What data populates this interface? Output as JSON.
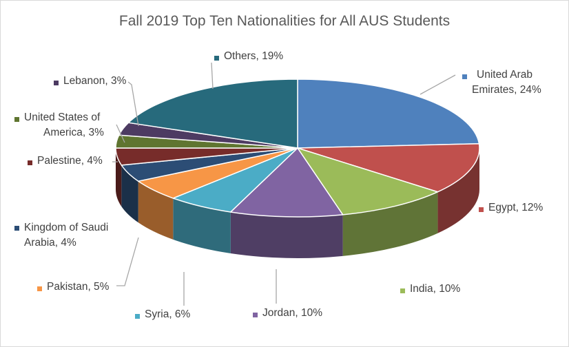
{
  "chart_data": {
    "type": "pie",
    "title": "Fall 2019 Top Ten Nationalities for All AUS Students",
    "style": "3d",
    "slices": [
      {
        "name": "United Arab Emirates",
        "label_lines": [
          "United Arab",
          "Emirates, 24%"
        ],
        "value": 24,
        "color": "#4f81bd"
      },
      {
        "name": "Egypt",
        "label_lines": [
          "Egypt, 12%"
        ],
        "value": 12,
        "color": "#c0504d"
      },
      {
        "name": "India",
        "label_lines": [
          "India, 10%"
        ],
        "value": 10,
        "color": "#9bbb59"
      },
      {
        "name": "Jordan",
        "label_lines": [
          "Jordan, 10%"
        ],
        "value": 10,
        "color": "#8064a2"
      },
      {
        "name": "Syria",
        "label_lines": [
          "Syria, 6%"
        ],
        "value": 6,
        "color": "#4bacc6"
      },
      {
        "name": "Pakistan",
        "label_lines": [
          "Pakistan, 5%"
        ],
        "value": 5,
        "color": "#f79646"
      },
      {
        "name": "Kingdom of Saudi Arabia",
        "label_lines": [
          "Kingdom of Saudi",
          "Arabia, 4%"
        ],
        "value": 4,
        "color": "#2c4d75"
      },
      {
        "name": "Palestine",
        "label_lines": [
          "Palestine, 4%"
        ],
        "value": 4,
        "color": "#772c2a"
      },
      {
        "name": "United States of America",
        "label_lines": [
          "United States of",
          "America, 3%"
        ],
        "value": 3,
        "color": "#5f7530"
      },
      {
        "name": "Lebanon",
        "label_lines": [
          "Lebanon, 3%"
        ],
        "value": 3,
        "color": "#4d3b62"
      },
      {
        "name": "Others",
        "label_lines": [
          "Others, 19%"
        ],
        "value": 19,
        "color": "#276a7c"
      }
    ]
  }
}
